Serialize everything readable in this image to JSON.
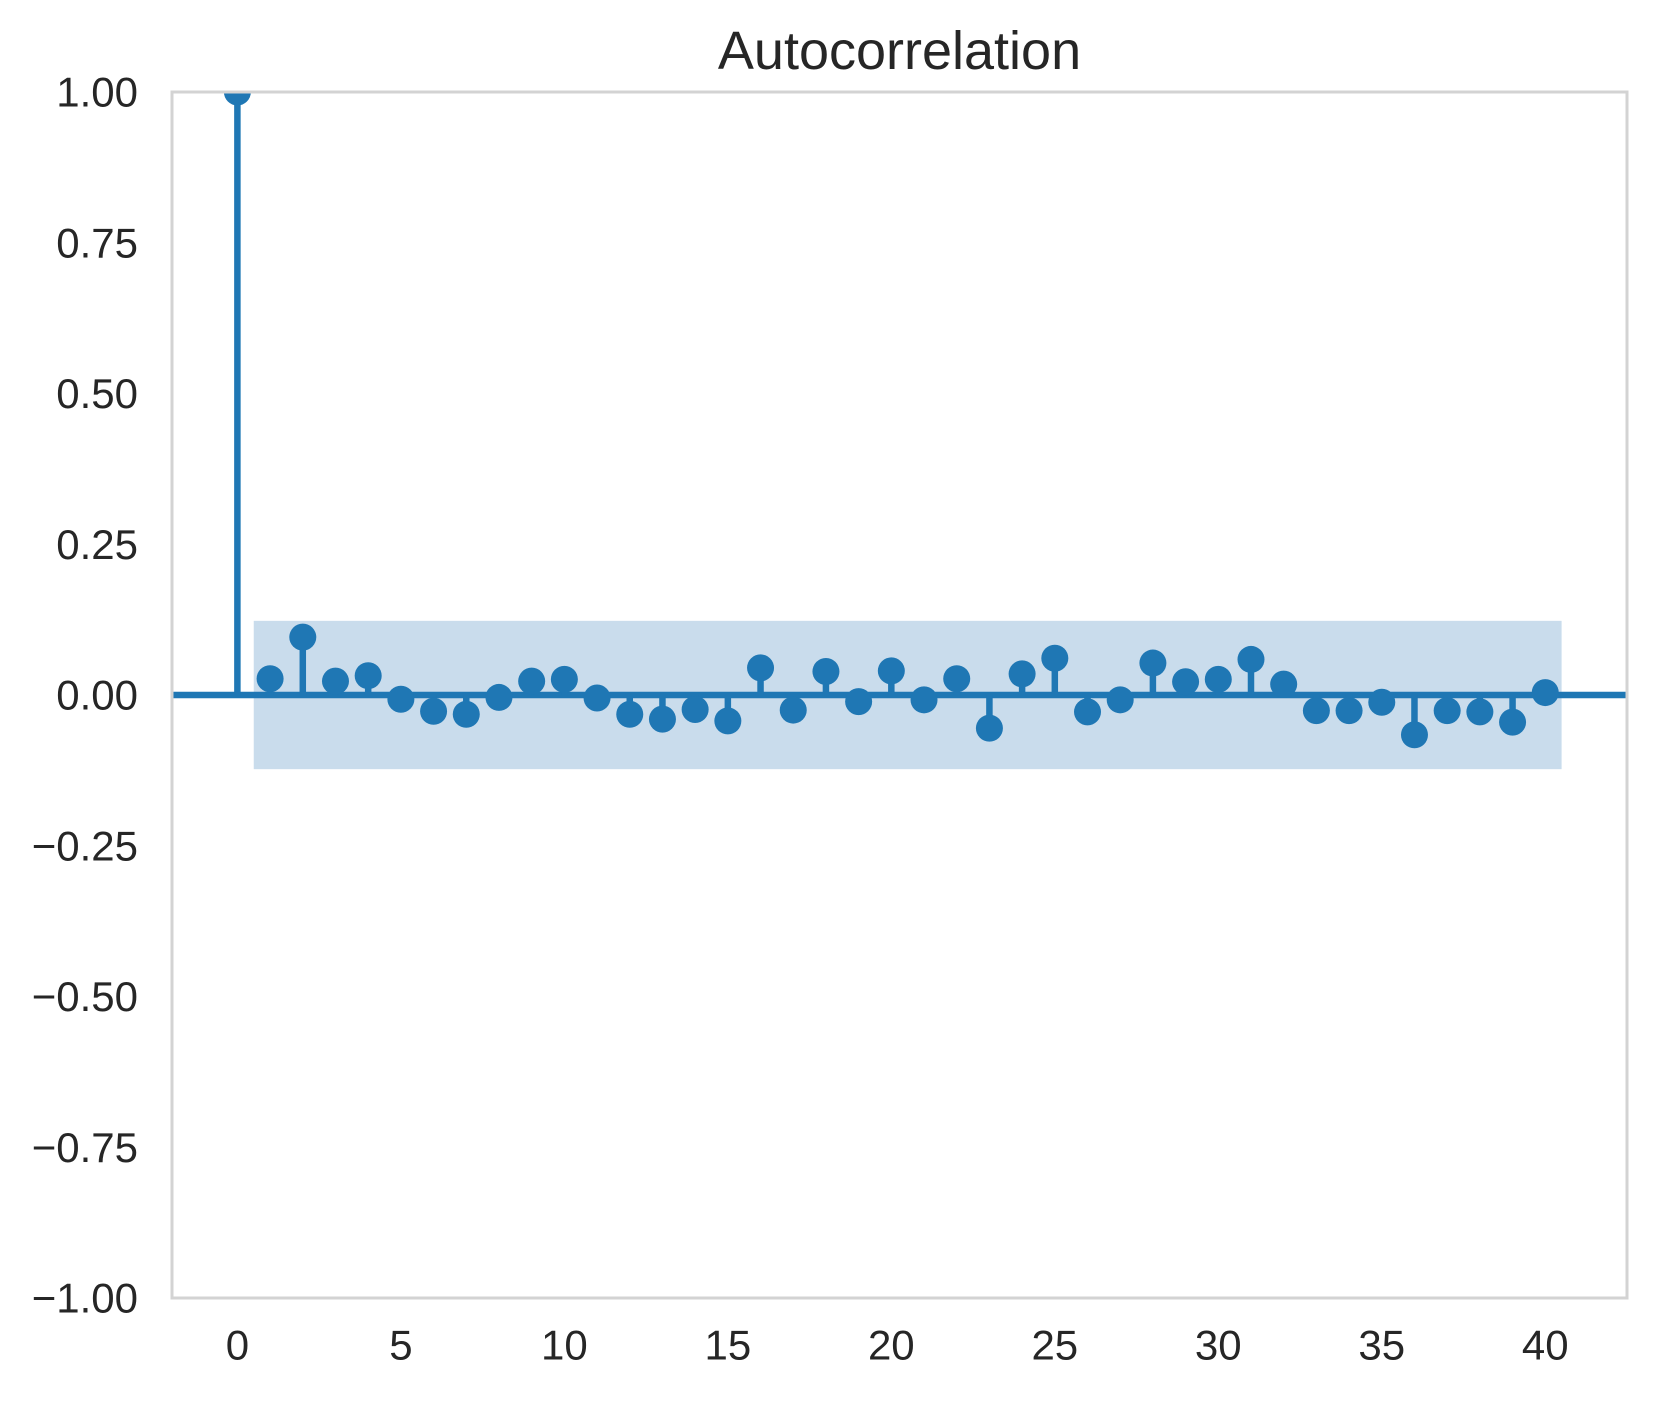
{
  "figure": {
    "background": "#ffffff"
  },
  "chart_data": {
    "type": "stem",
    "title": "Autocorrelation",
    "xlabel": "",
    "ylabel": "",
    "x": [
      0,
      1,
      2,
      3,
      4,
      5,
      6,
      7,
      8,
      9,
      10,
      11,
      12,
      13,
      14,
      15,
      16,
      17,
      18,
      19,
      20,
      21,
      22,
      23,
      24,
      25,
      26,
      27,
      28,
      29,
      30,
      31,
      32,
      33,
      34,
      35,
      36,
      37,
      38,
      39,
      40
    ],
    "values": [
      1.0,
      0.027,
      0.096,
      0.023,
      0.032,
      -0.007,
      -0.027,
      -0.032,
      -0.004,
      0.023,
      0.026,
      -0.005,
      -0.032,
      -0.04,
      -0.024,
      -0.043,
      0.045,
      -0.025,
      0.039,
      -0.011,
      0.04,
      -0.008,
      0.027,
      -0.055,
      0.035,
      0.061,
      -0.028,
      -0.008,
      0.053,
      0.022,
      0.026,
      0.059,
      0.018,
      -0.026,
      -0.026,
      -0.012,
      -0.066,
      -0.026,
      -0.028,
      -0.045,
      0.004
    ],
    "confidence_band": {
      "x_start": 0.5,
      "x_end": 40.5,
      "upper": 0.123,
      "lower": -0.123
    },
    "xlim": [
      -2,
      42.5
    ],
    "ylim": [
      -1,
      1
    ],
    "x_ticks": [
      {
        "v": 0,
        "label": "0"
      },
      {
        "v": 5,
        "label": "5"
      },
      {
        "v": 10,
        "label": "10"
      },
      {
        "v": 15,
        "label": "15"
      },
      {
        "v": 20,
        "label": "20"
      },
      {
        "v": 25,
        "label": "25"
      },
      {
        "v": 30,
        "label": "30"
      },
      {
        "v": 35,
        "label": "35"
      },
      {
        "v": 40,
        "label": "40"
      }
    ],
    "y_ticks": [
      {
        "v": 1.0,
        "label": "1.00"
      },
      {
        "v": 0.75,
        "label": "0.75"
      },
      {
        "v": 0.5,
        "label": "0.50"
      },
      {
        "v": 0.25,
        "label": "0.25"
      },
      {
        "v": 0.0,
        "label": "0.00"
      },
      {
        "v": -0.25,
        "label": "−0.25"
      },
      {
        "v": -0.5,
        "label": "−0.50"
      },
      {
        "v": -0.75,
        "label": "−0.75"
      },
      {
        "v": -1.0,
        "label": "−1.00"
      }
    ],
    "grid": false,
    "legend": null,
    "colors": {
      "stem": "#1f77b4",
      "marker": "#1f77b4",
      "band": "#c9dcec",
      "frame": "#d3d3d3",
      "text": "#262626",
      "background": "#ffffff"
    }
  }
}
